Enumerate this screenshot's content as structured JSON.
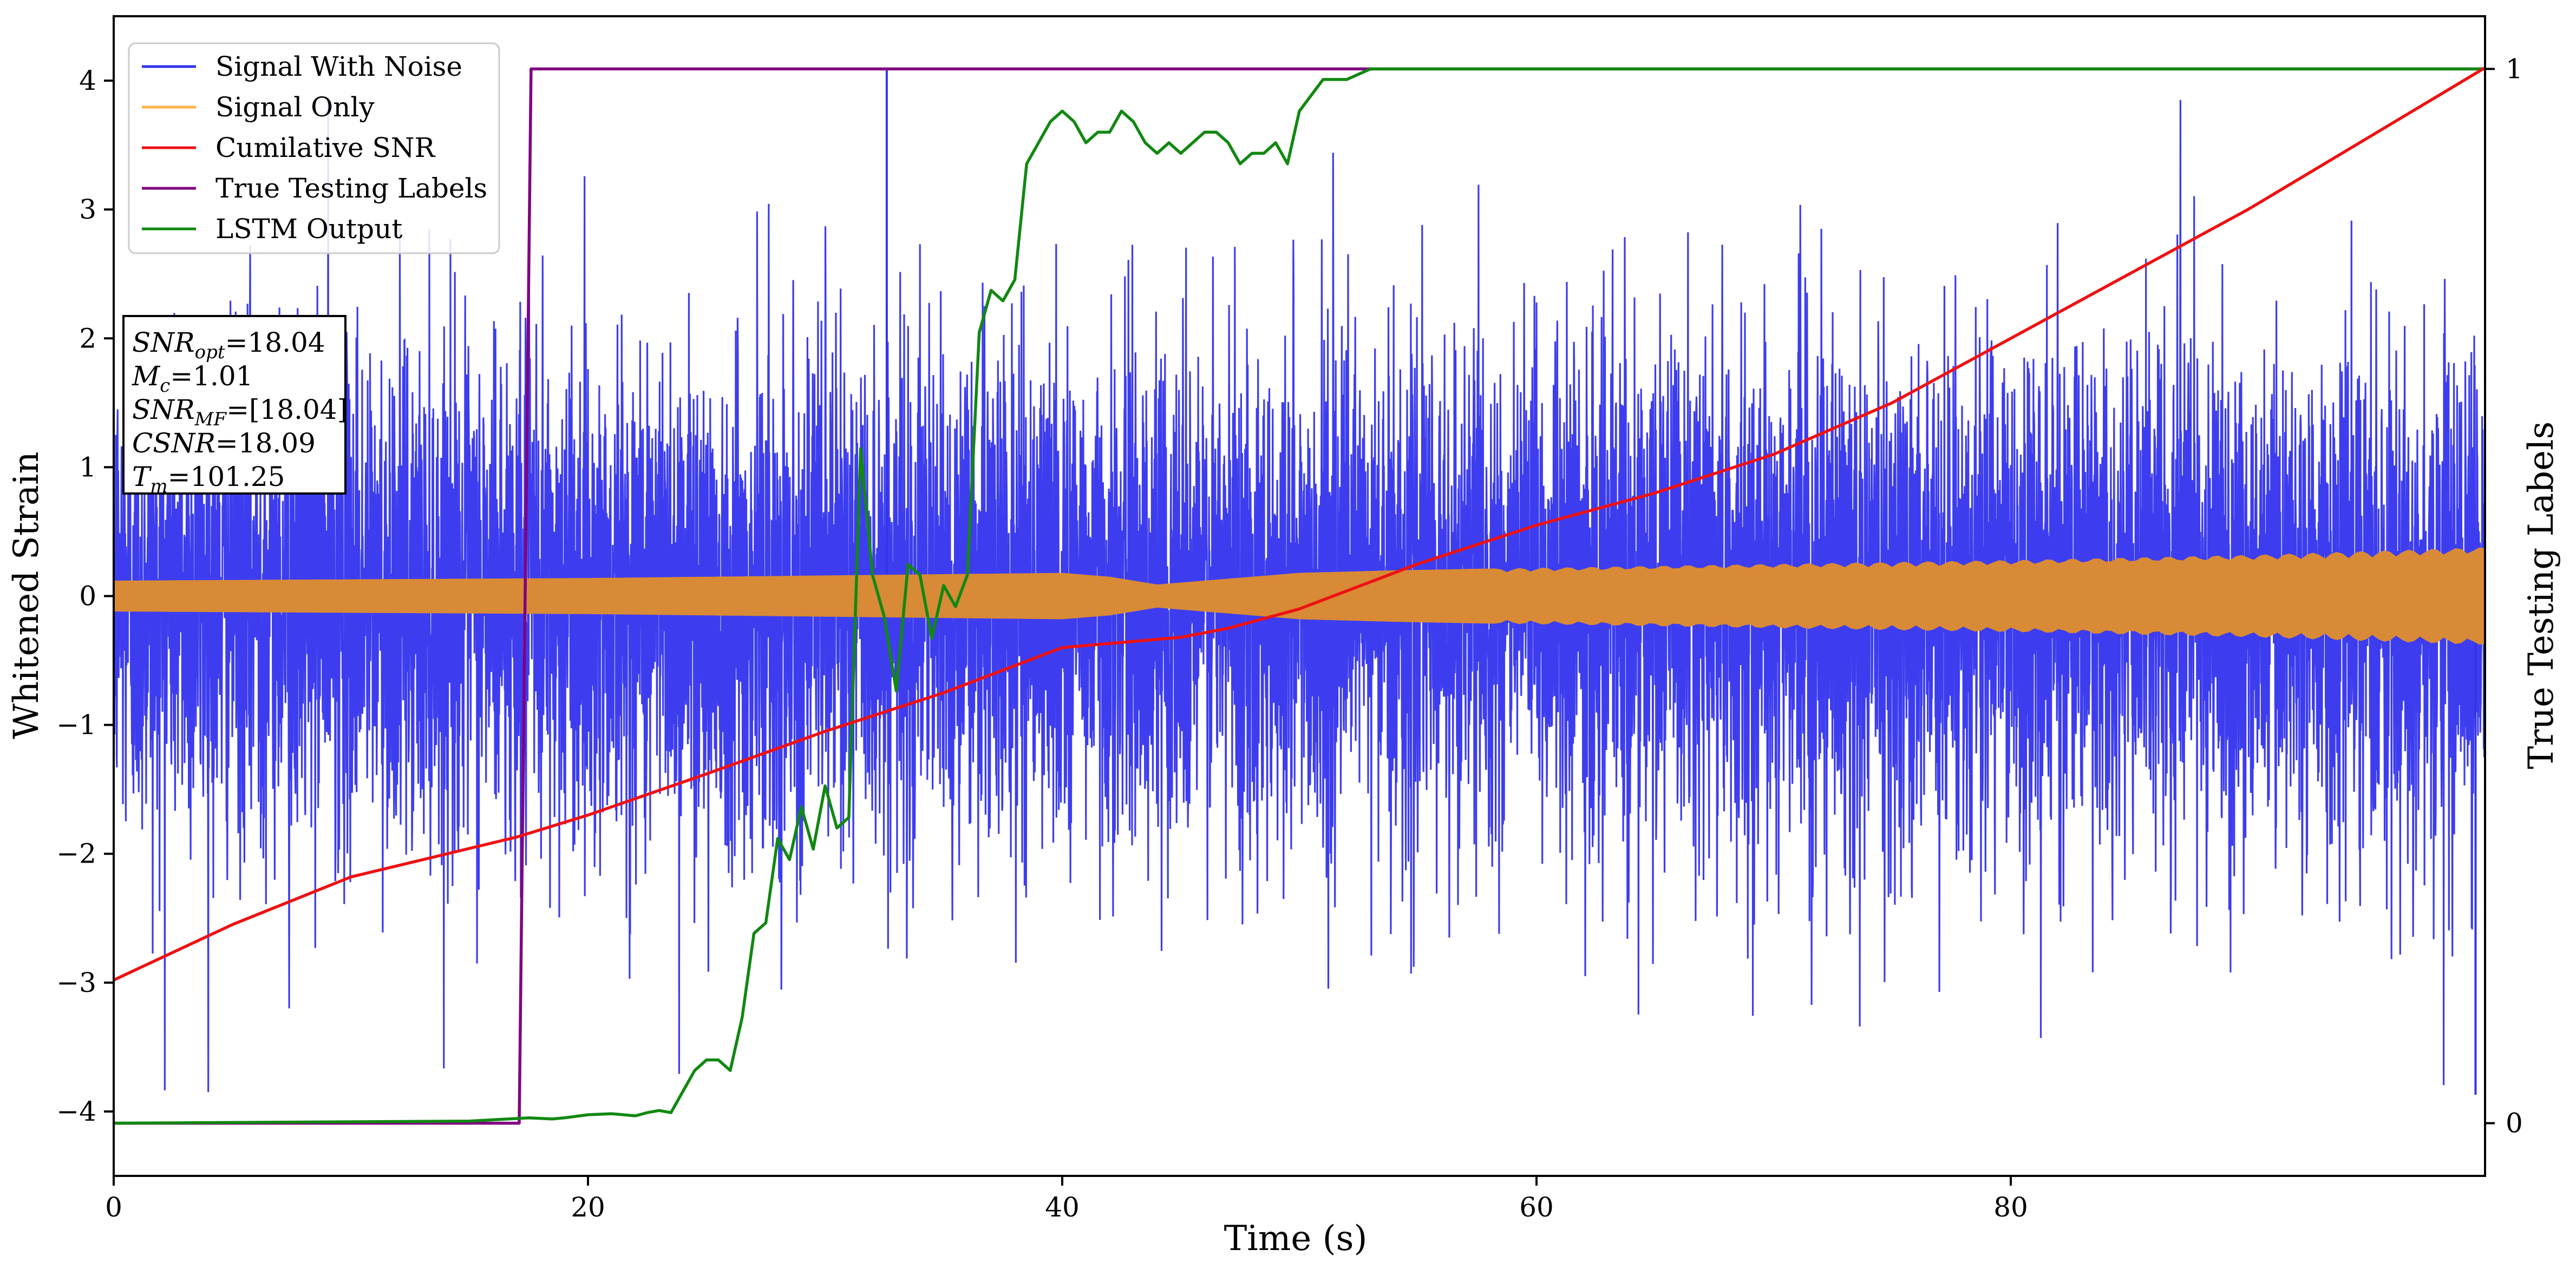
{
  "chart_data": {
    "type": "line",
    "xlabel": "Time (s)",
    "ylabel": "Whitened Strain",
    "ylabel_right": "True Testing Labels",
    "xlim": [
      0,
      100
    ],
    "ylim": [
      -4.5,
      4.5
    ],
    "ylim_right": [
      -0.05,
      1.05
    ],
    "xticks": [
      0,
      20,
      40,
      60,
      80
    ],
    "yticks": [
      -4,
      -3,
      -2,
      -1,
      0,
      1,
      2,
      3,
      4
    ],
    "yticks_right": [
      0,
      1
    ],
    "grid": false,
    "legend_position": "top-left",
    "legend": [
      {
        "name": "Signal With Noise",
        "color": "#3333ee"
      },
      {
        "name": "Signal Only",
        "color": "#ffb347"
      },
      {
        "name": "Cumilative SNR",
        "color": "#ee1111"
      },
      {
        "name": "True Testing Labels",
        "color": "#800080"
      },
      {
        "name": "LSTM Output",
        "color": "#118811"
      }
    ],
    "annotation_lines": [
      {
        "main": "SNR",
        "sub": "opt",
        "value": "=18.04"
      },
      {
        "main": "M",
        "sub": "c",
        "value": "=1.01"
      },
      {
        "main": "SNR",
        "sub": "MF",
        "value": "=[18.04]"
      },
      {
        "main": "CSNR",
        "sub": "",
        "value": "=18.09"
      },
      {
        "main": "T",
        "sub": "m",
        "value": "=101.25"
      }
    ],
    "series": [
      {
        "name": "Signal With Noise",
        "axis": "left",
        "color": "#3333ee",
        "description_stats": {
          "noise_std": 0.95,
          "max_peak": 4.1,
          "max_peak_x": 32.6,
          "min_peak": -3.87,
          "min_peak_x": 99.6
        }
      },
      {
        "name": "Signal Only",
        "axis": "left",
        "color": "#d88a36",
        "envelope": {
          "x": [
            0,
            20,
            40,
            42,
            44,
            46,
            50,
            54,
            60,
            70,
            80,
            90,
            100
          ],
          "amplitude": [
            0.12,
            0.14,
            0.18,
            0.15,
            0.09,
            0.12,
            0.18,
            0.2,
            0.22,
            0.25,
            0.28,
            0.32,
            0.38
          ]
        }
      },
      {
        "name": "Cumilative SNR",
        "axis": "left",
        "color": "#ee1111",
        "x": [
          0,
          5,
          10,
          17,
          20,
          25,
          30,
          35,
          40,
          45,
          47,
          50,
          55,
          60,
          65,
          70,
          75,
          80,
          85,
          90,
          95,
          100
        ],
        "y": [
          -2.98,
          -2.55,
          -2.18,
          -1.87,
          -1.7,
          -1.38,
          -1.05,
          -0.75,
          -0.4,
          -0.32,
          -0.25,
          -0.1,
          0.25,
          0.55,
          0.8,
          1.1,
          1.5,
          2.0,
          2.5,
          3.0,
          3.55,
          4.1
        ]
      },
      {
        "name": "True Testing Labels",
        "axis": "right",
        "color": "#800080",
        "x": [
          0,
          17.1,
          17.6,
          100
        ],
        "y": [
          0,
          0,
          1,
          1
        ]
      },
      {
        "name": "LSTM Output",
        "axis": "right",
        "color": "#118811",
        "x": [
          0,
          15,
          17.5,
          18.5,
          19,
          20,
          21,
          22,
          22.5,
          23,
          23.5,
          24,
          24.5,
          25,
          25.5,
          26,
          26.5,
          27,
          27.5,
          28,
          28.5,
          29,
          29.5,
          30,
          30.5,
          31,
          31.5,
          32,
          32.5,
          33,
          33.5,
          34,
          34.5,
          35,
          35.5,
          36,
          36.5,
          37,
          37.5,
          38,
          38.5,
          39,
          39.5,
          40,
          40.5,
          41,
          41.5,
          42,
          42.5,
          43,
          43.5,
          44,
          44.5,
          45,
          45.5,
          46,
          46.5,
          47,
          47.5,
          48,
          48.5,
          49,
          49.5,
          50,
          51,
          52,
          53,
          54,
          55,
          56,
          57,
          100
        ],
        "y": [
          0,
          0.002,
          0.005,
          0.004,
          0.005,
          0.008,
          0.009,
          0.007,
          0.01,
          0.012,
          0.01,
          0.03,
          0.05,
          0.06,
          0.06,
          0.05,
          0.1,
          0.18,
          0.19,
          0.27,
          0.25,
          0.3,
          0.26,
          0.32,
          0.28,
          0.29,
          0.64,
          0.52,
          0.48,
          0.41,
          0.53,
          0.52,
          0.46,
          0.51,
          0.49,
          0.52,
          0.75,
          0.79,
          0.78,
          0.8,
          0.91,
          0.93,
          0.95,
          0.96,
          0.95,
          0.93,
          0.94,
          0.94,
          0.96,
          0.95,
          0.93,
          0.92,
          0.93,
          0.92,
          0.93,
          0.94,
          0.94,
          0.93,
          0.91,
          0.92,
          0.92,
          0.93,
          0.91,
          0.96,
          0.99,
          0.99,
          1.0,
          1.0,
          1.0,
          1.0,
          1.0,
          1.0
        ]
      }
    ]
  }
}
